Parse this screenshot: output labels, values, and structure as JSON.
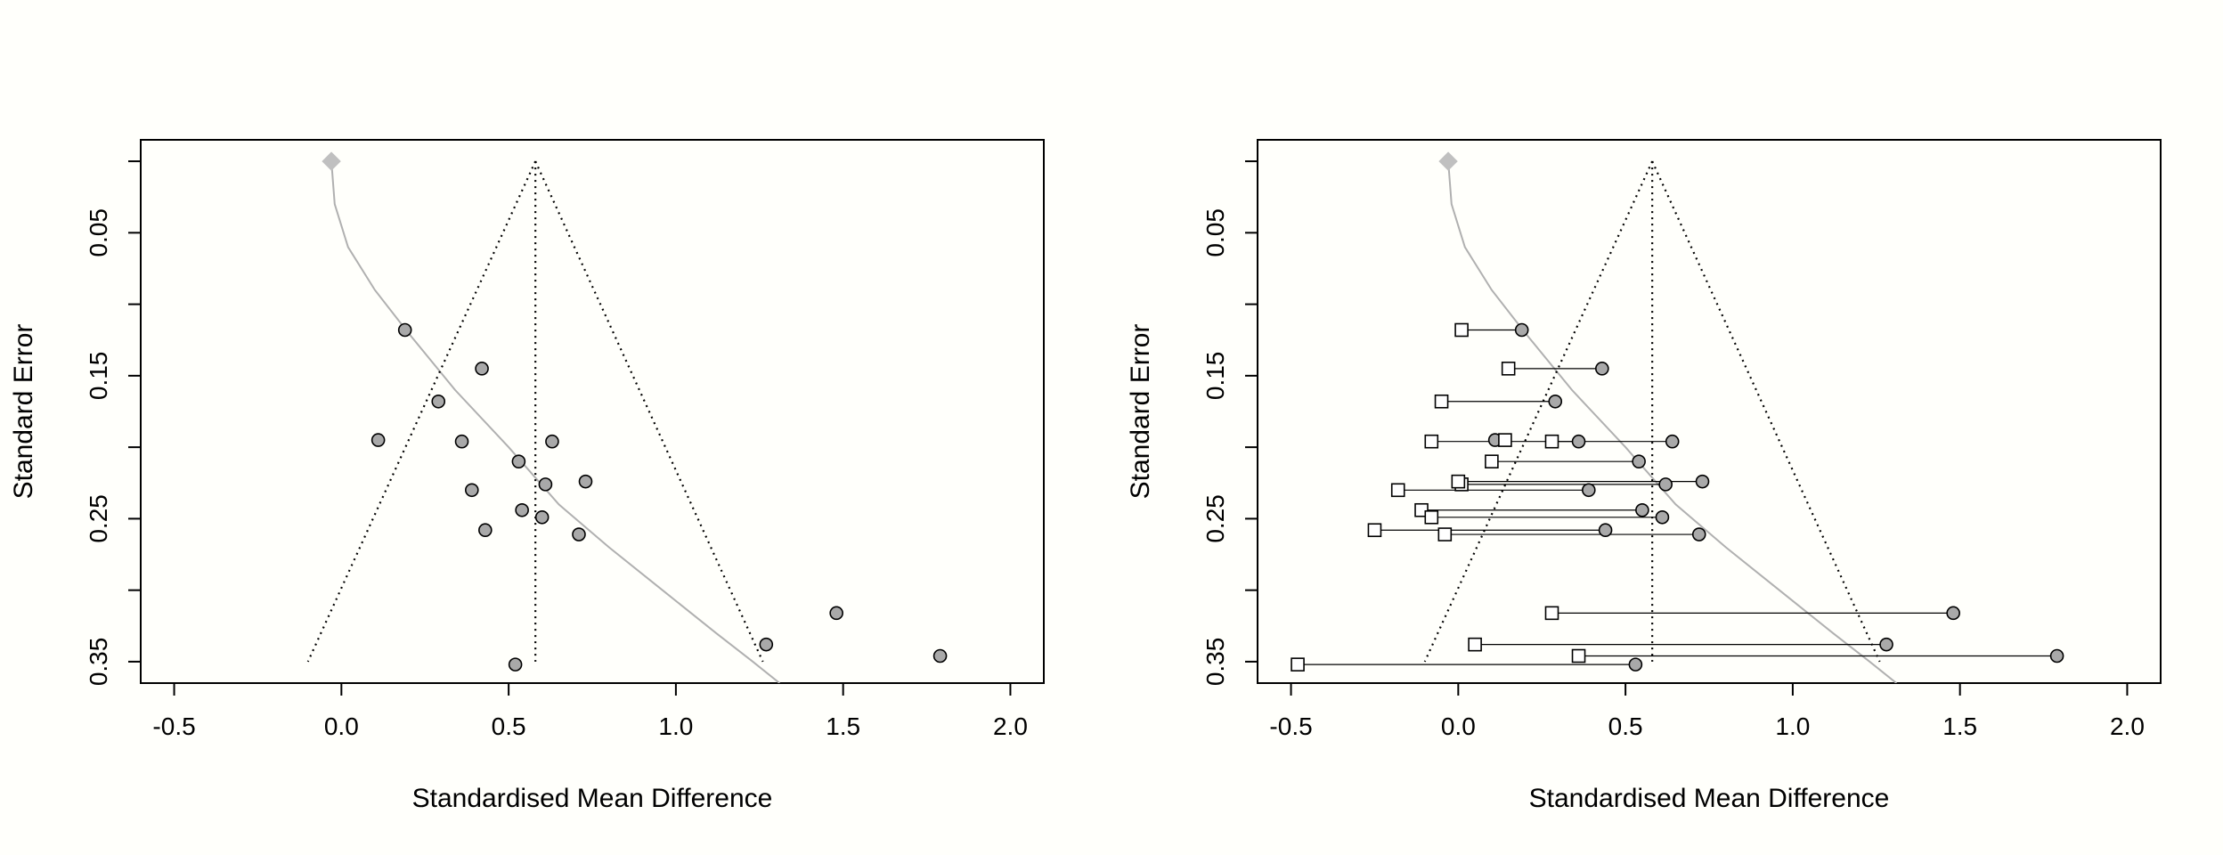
{
  "chart_data": [
    {
      "type": "scatter",
      "subtype": "funnel-plot",
      "xlabel": "Standardised Mean Difference",
      "ylabel": "Standard Error",
      "xlim": [
        -0.6,
        2.1
      ],
      "ylim": [
        0.365,
        -0.015
      ],
      "y_reversed": true,
      "x_ticks": [
        "-0.5",
        "0.0",
        "0.5",
        "1.0",
        "1.5",
        "2.0"
      ],
      "y_ticks": [
        "0.05",
        "0.15",
        "0.25",
        "0.35"
      ],
      "pooled_estimate": 0.58,
      "funnel_bottom_se": 0.35,
      "funnel_left_bottom_x": -0.1,
      "funnel_right_bottom_x": 1.26,
      "adjusted_estimate": -0.03,
      "curve": [
        [
          -0.03,
          0.0
        ],
        [
          -0.02,
          0.03
        ],
        [
          0.02,
          0.06
        ],
        [
          0.1,
          0.09
        ],
        [
          0.2,
          0.12
        ],
        [
          0.34,
          0.16
        ],
        [
          0.5,
          0.2
        ],
        [
          0.65,
          0.24
        ],
        [
          0.8,
          0.27
        ],
        [
          0.96,
          0.3
        ],
        [
          1.12,
          0.33
        ],
        [
          1.23,
          0.35
        ],
        [
          1.31,
          0.365
        ]
      ],
      "series": [
        {
          "marker": "filled-circle",
          "x": [
            0.19,
            0.42,
            0.29,
            0.11,
            0.36,
            0.63,
            0.53,
            0.61,
            0.73,
            0.39,
            0.54,
            0.6,
            0.43,
            0.71,
            1.48,
            1.27,
            1.79,
            0.52
          ],
          "y": [
            0.118,
            0.145,
            0.168,
            0.195,
            0.196,
            0.196,
            0.21,
            0.226,
            0.224,
            0.23,
            0.244,
            0.249,
            0.258,
            0.261,
            0.316,
            0.338,
            0.346,
            0.352
          ]
        }
      ]
    },
    {
      "type": "scatter",
      "subtype": "funnel-plot",
      "xlabel": "Standardised Mean Difference",
      "ylabel": "Standard Error",
      "xlim": [
        -0.6,
        2.1
      ],
      "ylim": [
        0.365,
        -0.015
      ],
      "y_reversed": true,
      "x_ticks": [
        "-0.5",
        "0.0",
        "0.5",
        "1.0",
        "1.5",
        "2.0"
      ],
      "y_ticks": [
        "0.05",
        "0.15",
        "0.25",
        "0.35"
      ],
      "pooled_estimate": 0.58,
      "funnel_bottom_se": 0.35,
      "funnel_left_bottom_x": -0.1,
      "funnel_right_bottom_x": 1.26,
      "adjusted_estimate": -0.03,
      "curve": [
        [
          -0.03,
          0.0
        ],
        [
          -0.02,
          0.03
        ],
        [
          0.02,
          0.06
        ],
        [
          0.1,
          0.09
        ],
        [
          0.2,
          0.12
        ],
        [
          0.34,
          0.16
        ],
        [
          0.5,
          0.2
        ],
        [
          0.65,
          0.24
        ],
        [
          0.8,
          0.27
        ],
        [
          0.96,
          0.3
        ],
        [
          1.12,
          0.33
        ],
        [
          1.23,
          0.35
        ],
        [
          1.31,
          0.365
        ]
      ],
      "series": [
        {
          "marker": "filled-circle",
          "x": [
            0.19,
            0.43,
            0.29,
            0.11,
            0.36,
            0.64,
            0.54,
            0.62,
            0.73,
            0.39,
            0.55,
            0.61,
            0.44,
            0.72,
            1.48,
            1.28,
            1.79,
            0.53
          ],
          "y": [
            0.118,
            0.145,
            0.168,
            0.195,
            0.196,
            0.196,
            0.21,
            0.226,
            0.224,
            0.23,
            0.244,
            0.249,
            0.258,
            0.261,
            0.316,
            0.338,
            0.346,
            0.352
          ]
        },
        {
          "marker": "open-square",
          "x": [
            0.01,
            0.15,
            -0.05,
            0.14,
            -0.08,
            0.28,
            0.1,
            0.01,
            0.0,
            -0.18,
            -0.11,
            -0.08,
            -0.25,
            -0.04,
            0.28,
            0.05,
            0.36,
            -0.48
          ],
          "y": [
            0.118,
            0.145,
            0.168,
            0.195,
            0.196,
            0.196,
            0.21,
            0.226,
            0.224,
            0.23,
            0.244,
            0.249,
            0.258,
            0.261,
            0.316,
            0.338,
            0.346,
            0.352
          ],
          "y_note": ""
        }
      ]
    }
  ]
}
